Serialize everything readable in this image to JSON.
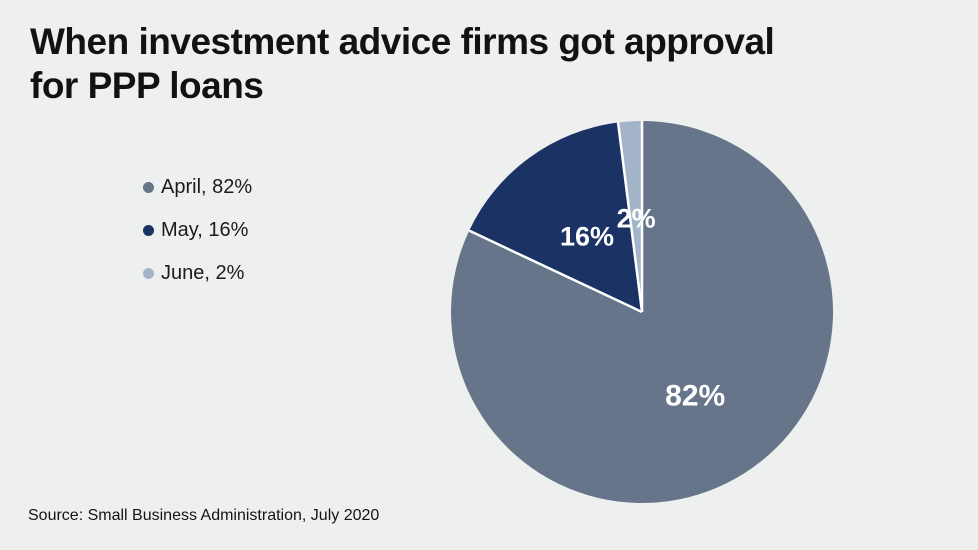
{
  "page": {
    "background_color": "#eef0ef"
  },
  "header": {
    "title_lines": [
      "When investment advice firms got approval",
      "for PPP loans"
    ]
  },
  "legend": {
    "items": [
      {
        "label": "April, 82%",
        "color": "#67758a"
      },
      {
        "label": "May, 16%",
        "color": "#1b3264"
      },
      {
        "label": "June, 2%",
        "color": "#a3b4c8"
      }
    ]
  },
  "footer": {
    "source": "Source: Small Business Administration, July 2020"
  },
  "chart_data": {
    "type": "pie",
    "title": "When investment advice firms got approval for PPP loans",
    "categories": [
      "April",
      "May",
      "June"
    ],
    "values": [
      82,
      16,
      2
    ],
    "series": [
      {
        "label": "April",
        "value": 82,
        "color": "#67758a",
        "slice_label": "82%"
      },
      {
        "label": "May",
        "value": 16,
        "color": "#1b3264",
        "slice_label": "16%"
      },
      {
        "label": "June",
        "value": 2,
        "color": "#a3b4c8",
        "slice_label": "2%"
      }
    ],
    "start_angle_deg": 0,
    "direction": "clockwise",
    "legend_position": "left",
    "legend_labels": [
      "April, 82%",
      "May, 16%",
      "June, 2%"
    ],
    "slice_label_color": "#ffffff",
    "slice_separator_color": "#ffffff",
    "source": "Source: Small Business Administration, July 2020"
  }
}
